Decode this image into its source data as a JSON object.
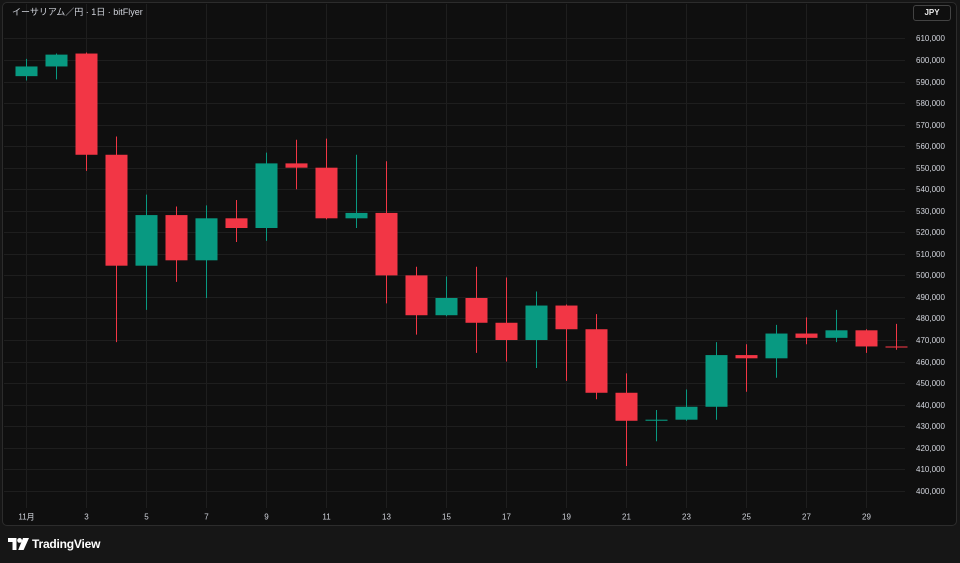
{
  "header": {
    "currency_button": "JPY"
  },
  "footer": {
    "brand": "TradingView",
    "logo_icon": "tradingview-logo-icon"
  },
  "colors": {
    "up": "#089981",
    "down": "#f23645",
    "grid": "#1e1e1e",
    "axis_text": "#d1d4dc"
  },
  "chart_data": {
    "type": "candlestick",
    "title": "イーサリアム／円 · 1日 · bitFlyer",
    "grid": true,
    "xlim": [
      0.25,
      30.3
    ],
    "ylim": [
      392000,
      626000
    ],
    "x_ticks": [
      {
        "day": 1,
        "label": "11月"
      },
      {
        "day": 3,
        "label": "3"
      },
      {
        "day": 5,
        "label": "5"
      },
      {
        "day": 7,
        "label": "7"
      },
      {
        "day": 9,
        "label": "9"
      },
      {
        "day": 11,
        "label": "11"
      },
      {
        "day": 13,
        "label": "13"
      },
      {
        "day": 15,
        "label": "15"
      },
      {
        "day": 17,
        "label": "17"
      },
      {
        "day": 19,
        "label": "19"
      },
      {
        "day": 21,
        "label": "21"
      },
      {
        "day": 23,
        "label": "23"
      },
      {
        "day": 25,
        "label": "25"
      },
      {
        "day": 27,
        "label": "27"
      },
      {
        "day": 29,
        "label": "29"
      }
    ],
    "y_tick_labels": [
      "610,000",
      "600,000",
      "590,000",
      "580,000",
      "570,000",
      "560,000",
      "550,000",
      "540,000",
      "530,000",
      "520,000",
      "510,000",
      "500,000",
      "490,000",
      "480,000",
      "470,000",
      "460,000",
      "450,000",
      "440,000",
      "430,000",
      "420,000",
      "410,000",
      "400,000"
    ],
    "candles": [
      {
        "day": 1,
        "open": 592500,
        "high": 600500,
        "low": 590500,
        "close": 597000
      },
      {
        "day": 2,
        "open": 597000,
        "high": 603000,
        "low": 591000,
        "close": 602500
      },
      {
        "day": 3,
        "open": 603000,
        "high": 603500,
        "low": 548500,
        "close": 556000
      },
      {
        "day": 4,
        "open": 556000,
        "high": 564500,
        "low": 469000,
        "close": 504500
      },
      {
        "day": 5,
        "open": 504500,
        "high": 537500,
        "low": 484000,
        "close": 528000
      },
      {
        "day": 6,
        "open": 528000,
        "high": 532000,
        "low": 497000,
        "close": 507000
      },
      {
        "day": 7,
        "open": 507000,
        "high": 532500,
        "low": 489500,
        "close": 526500
      },
      {
        "day": 8,
        "open": 526500,
        "high": 535000,
        "low": 515500,
        "close": 522000
      },
      {
        "day": 9,
        "open": 522000,
        "high": 557000,
        "low": 516000,
        "close": 552000
      },
      {
        "day": 10,
        "open": 552000,
        "high": 563000,
        "low": 540000,
        "close": 550000
      },
      {
        "day": 11,
        "open": 550000,
        "high": 563500,
        "low": 526000,
        "close": 526500
      },
      {
        "day": 12,
        "open": 526500,
        "high": 556000,
        "low": 522000,
        "close": 529000
      },
      {
        "day": 13,
        "open": 529000,
        "high": 553000,
        "low": 487000,
        "close": 500000
      },
      {
        "day": 14,
        "open": 500000,
        "high": 504000,
        "low": 472500,
        "close": 481500
      },
      {
        "day": 15,
        "open": 481500,
        "high": 499500,
        "low": 481000,
        "close": 489500
      },
      {
        "day": 16,
        "open": 489500,
        "high": 504000,
        "low": 464000,
        "close": 478000
      },
      {
        "day": 17,
        "open": 478000,
        "high": 499000,
        "low": 460000,
        "close": 470000
      },
      {
        "day": 18,
        "open": 470000,
        "high": 492500,
        "low": 457000,
        "close": 486000
      },
      {
        "day": 19,
        "open": 486000,
        "high": 486500,
        "low": 451000,
        "close": 475000
      },
      {
        "day": 20,
        "open": 475000,
        "high": 482000,
        "low": 442500,
        "close": 445500
      },
      {
        "day": 21,
        "open": 445500,
        "high": 454500,
        "low": 411500,
        "close": 432500
      },
      {
        "day": 22,
        "open": 432500,
        "high": 437500,
        "low": 423000,
        "close": 433000
      },
      {
        "day": 23,
        "open": 433000,
        "high": 447000,
        "low": 432500,
        "close": 439000
      },
      {
        "day": 24,
        "open": 439000,
        "high": 469000,
        "low": 433000,
        "close": 463000
      },
      {
        "day": 25,
        "open": 463000,
        "high": 468000,
        "low": 446000,
        "close": 461500
      },
      {
        "day": 26,
        "open": 461500,
        "high": 477000,
        "low": 452500,
        "close": 473000
      },
      {
        "day": 27,
        "open": 473000,
        "high": 480500,
        "low": 468000,
        "close": 471000
      },
      {
        "day": 28,
        "open": 471000,
        "high": 484000,
        "low": 469000,
        "close": 474500
      },
      {
        "day": 29,
        "open": 474500,
        "high": 475000,
        "low": 464000,
        "close": 467000
      },
      {
        "day": 30,
        "open": 467000,
        "high": 477500,
        "low": 465500,
        "close": 466500
      }
    ]
  }
}
